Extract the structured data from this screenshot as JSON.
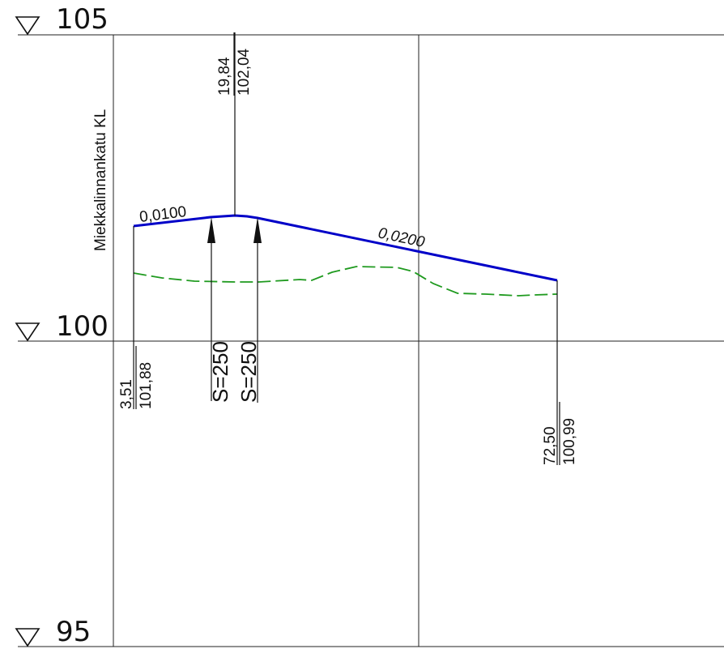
{
  "street": {
    "name": "Miekkalinnankatu KL"
  },
  "elevation_refs": [
    {
      "label": "105",
      "value": 105
    },
    {
      "label": "100",
      "value": 100
    },
    {
      "label": "95",
      "value": 95
    }
  ],
  "points": [
    {
      "station": "3,51",
      "elevation": "101,88"
    },
    {
      "station": "19,84",
      "elevation": "102,04"
    },
    {
      "station": "72,50",
      "elevation": "100,99"
    }
  ],
  "slopes": [
    {
      "label": "0,0100"
    },
    {
      "label": "0,0200"
    }
  ],
  "curve_labels": [
    "S=250",
    "S=250"
  ],
  "colors": {
    "design_line": "#0000c8",
    "ground_line": "#1f9a1f",
    "grid": "#222222"
  }
}
